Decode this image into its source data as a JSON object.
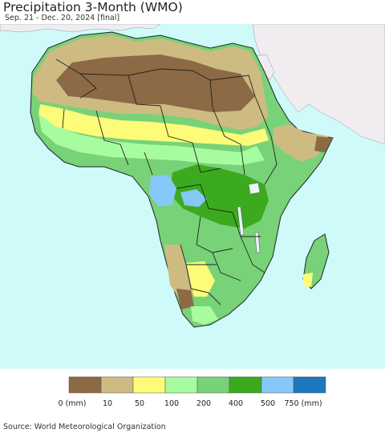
{
  "header": {
    "title": "Precipitation 3-Month (WMO)",
    "subtitle": "Sep. 21 - Dec. 20, 2024 [final]"
  },
  "legend": {
    "colors": [
      "#8b6a45",
      "#cdbb82",
      "#fcfc78",
      "#a8fca0",
      "#78d278",
      "#3caa1e",
      "#87c8fa",
      "#1e78be"
    ],
    "labels": [
      "0 (mm)",
      "10",
      "50",
      "100",
      "200",
      "400",
      "500",
      "750 (mm)"
    ]
  },
  "map_colors": {
    "ocean": "#cffafa",
    "foreign_land": "#f0ecf0",
    "border": "#222222",
    "lake": "#e6f6f6"
  },
  "footer": {
    "source": "Source: World Meteorological Organization"
  }
}
